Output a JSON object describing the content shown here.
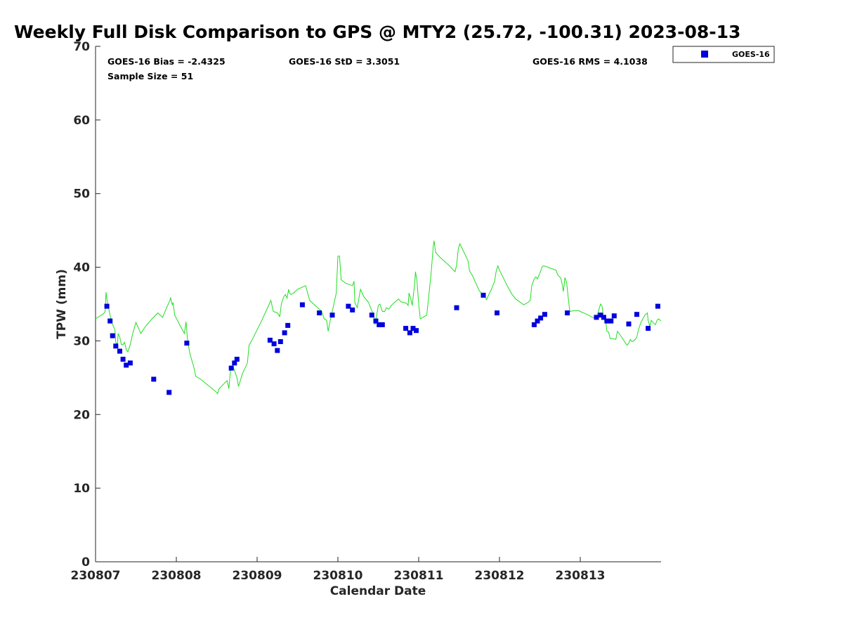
{
  "chart_data": {
    "type": "line+scatter",
    "title": "Weekly Full Disk Comparison to GPS @ MTY2 (25.72, -100.31) 2023-08-13",
    "xlabel": "Calendar Date",
    "ylabel": "TPW (mm)",
    "xlim": [
      0,
      7
    ],
    "ylim": [
      0,
      70
    ],
    "x_ticks": [
      {
        "x": 0,
        "label": "230807"
      },
      {
        "x": 1,
        "label": "230808"
      },
      {
        "x": 2,
        "label": "230809"
      },
      {
        "x": 3,
        "label": "230810"
      },
      {
        "x": 4,
        "label": "230811"
      },
      {
        "x": 5,
        "label": "230812"
      },
      {
        "x": 6,
        "label": "230813"
      }
    ],
    "y_ticks": [
      {
        "y": 0,
        "label": "0"
      },
      {
        "y": 10,
        "label": "10"
      },
      {
        "y": 20,
        "label": "20"
      },
      {
        "y": 30,
        "label": "30"
      },
      {
        "y": 40,
        "label": "40"
      },
      {
        "y": 50,
        "label": "50"
      },
      {
        "y": 60,
        "label": "60"
      },
      {
        "y": 70,
        "label": "70"
      }
    ],
    "stats": {
      "bias": "GOES-16 Bias = -2.4325",
      "std": "GOES-16 StD = 3.3051",
      "rms": "GOES-16 RMS = 4.1038",
      "sample": "Sample Size = 51"
    },
    "legend": {
      "position": "top-right",
      "entries": [
        "GOES-16"
      ]
    },
    "series": [
      {
        "name": "GPS",
        "style": "line",
        "color": "#22dd22",
        "points": [
          [
            0.0,
            33.0
          ],
          [
            0.1,
            33.7
          ],
          [
            0.12,
            34.0
          ],
          [
            0.13,
            36.6
          ],
          [
            0.15,
            35.0
          ],
          [
            0.18,
            33.5
          ],
          [
            0.2,
            32.5
          ],
          [
            0.24,
            31.5
          ],
          [
            0.25,
            29.8
          ],
          [
            0.27,
            29.5
          ],
          [
            0.28,
            31.0
          ],
          [
            0.3,
            30.5
          ],
          [
            0.32,
            29.5
          ],
          [
            0.34,
            29.5
          ],
          [
            0.36,
            29.8
          ],
          [
            0.38,
            28.8
          ],
          [
            0.4,
            28.5
          ],
          [
            0.43,
            29.5
          ],
          [
            0.46,
            31.0
          ],
          [
            0.5,
            32.5
          ],
          [
            0.53,
            31.8
          ],
          [
            0.56,
            31.0
          ],
          [
            0.62,
            32.0
          ],
          [
            0.7,
            33.0
          ],
          [
            0.77,
            33.8
          ],
          [
            0.83,
            33.2
          ],
          [
            0.88,
            34.5
          ],
          [
            0.92,
            35.5
          ],
          [
            0.93,
            35.9
          ],
          [
            0.94,
            35.3
          ],
          [
            0.95,
            34.9
          ],
          [
            0.96,
            35.2
          ],
          [
            0.98,
            33.5
          ],
          [
            1.05,
            32.0
          ],
          [
            1.1,
            31.0
          ],
          [
            1.12,
            32.6
          ],
          [
            1.14,
            30.0
          ],
          [
            1.17,
            28.2
          ],
          [
            1.22,
            26.3
          ],
          [
            1.24,
            25.2
          ],
          [
            1.3,
            24.8
          ],
          [
            1.4,
            23.9
          ],
          [
            1.5,
            23.0
          ],
          [
            1.51,
            22.8
          ],
          [
            1.53,
            23.5
          ],
          [
            1.6,
            24.3
          ],
          [
            1.63,
            24.6
          ],
          [
            1.65,
            23.5
          ],
          [
            1.67,
            26.0
          ],
          [
            1.7,
            26.6
          ],
          [
            1.75,
            25.0
          ],
          [
            1.77,
            23.8
          ],
          [
            1.82,
            25.6
          ],
          [
            1.88,
            27.0
          ],
          [
            1.9,
            29.4
          ],
          [
            1.95,
            30.4
          ],
          [
            2.0,
            31.5
          ],
          [
            2.05,
            32.6
          ],
          [
            2.1,
            33.8
          ],
          [
            2.15,
            35.0
          ],
          [
            2.17,
            35.5
          ],
          [
            2.2,
            34.0
          ],
          [
            2.25,
            33.8
          ],
          [
            2.28,
            33.3
          ],
          [
            2.3,
            35.0
          ],
          [
            2.33,
            36.0
          ],
          [
            2.35,
            36.3
          ],
          [
            2.37,
            35.8
          ],
          [
            2.39,
            37.0
          ],
          [
            2.4,
            36.5
          ],
          [
            2.42,
            36.3
          ],
          [
            2.45,
            36.5
          ],
          [
            2.5,
            37.0
          ],
          [
            2.6,
            37.5
          ],
          [
            2.65,
            35.5
          ],
          [
            2.8,
            34.0
          ],
          [
            2.83,
            33.0
          ],
          [
            2.86,
            32.8
          ],
          [
            2.88,
            31.3
          ],
          [
            2.9,
            32.5
          ],
          [
            2.98,
            36.5
          ],
          [
            3.0,
            41.5
          ],
          [
            3.02,
            41.5
          ],
          [
            3.04,
            38.3
          ],
          [
            3.1,
            37.8
          ],
          [
            3.18,
            37.5
          ],
          [
            3.2,
            38.1
          ],
          [
            3.21,
            35.2
          ],
          [
            3.24,
            34.5
          ],
          [
            3.25,
            35.2
          ],
          [
            3.28,
            37.0
          ],
          [
            3.32,
            36.0
          ],
          [
            3.38,
            35.2
          ],
          [
            3.44,
            33.5
          ],
          [
            3.46,
            32.2
          ],
          [
            3.5,
            34.8
          ],
          [
            3.52,
            35.0
          ],
          [
            3.55,
            34.0
          ],
          [
            3.58,
            34.0
          ],
          [
            3.6,
            34.5
          ],
          [
            3.63,
            34.3
          ],
          [
            3.66,
            34.8
          ],
          [
            3.72,
            35.4
          ],
          [
            3.75,
            35.7
          ],
          [
            3.78,
            35.3
          ],
          [
            3.82,
            35.2
          ],
          [
            3.85,
            35.1
          ],
          [
            3.87,
            34.8
          ],
          [
            3.88,
            36.5
          ],
          [
            3.9,
            35.8
          ],
          [
            3.92,
            34.8
          ],
          [
            3.95,
            37.8
          ],
          [
            3.96,
            39.4
          ],
          [
            3.98,
            38.0
          ],
          [
            4.0,
            35.0
          ],
          [
            4.02,
            33.0
          ],
          [
            4.1,
            33.5
          ],
          [
            4.13,
            36.7
          ],
          [
            4.15,
            38.8
          ],
          [
            4.16,
            40.0
          ],
          [
            4.18,
            42.8
          ],
          [
            4.19,
            43.6
          ],
          [
            4.21,
            42.0
          ],
          [
            4.26,
            41.4
          ],
          [
            4.32,
            40.8
          ],
          [
            4.38,
            40.2
          ],
          [
            4.43,
            39.6
          ],
          [
            4.45,
            39.4
          ],
          [
            4.47,
            40.3
          ],
          [
            4.49,
            42.5
          ],
          [
            4.51,
            43.2
          ],
          [
            4.54,
            42.5
          ],
          [
            4.58,
            41.6
          ],
          [
            4.61,
            40.9
          ],
          [
            4.63,
            39.5
          ],
          [
            4.67,
            38.8
          ],
          [
            4.7,
            38.0
          ],
          [
            4.75,
            36.8
          ],
          [
            4.79,
            36.3
          ],
          [
            4.81,
            36.2
          ],
          [
            4.84,
            35.6
          ],
          [
            4.86,
            36.1
          ],
          [
            4.9,
            37.0
          ],
          [
            4.94,
            38.1
          ],
          [
            4.96,
            39.5
          ],
          [
            4.98,
            40.2
          ],
          [
            5.0,
            39.6
          ],
          [
            5.05,
            38.5
          ],
          [
            5.1,
            37.4
          ],
          [
            5.15,
            36.4
          ],
          [
            5.2,
            35.7
          ],
          [
            5.3,
            34.9
          ],
          [
            5.35,
            35.2
          ],
          [
            5.38,
            35.5
          ],
          [
            5.4,
            37.5
          ],
          [
            5.43,
            38.4
          ],
          [
            5.45,
            38.7
          ],
          [
            5.47,
            38.4
          ],
          [
            5.5,
            39.2
          ],
          [
            5.53,
            40.1
          ],
          [
            5.55,
            40.2
          ],
          [
            5.6,
            40.0
          ],
          [
            5.7,
            39.6
          ],
          [
            5.72,
            39.0
          ],
          [
            5.76,
            38.5
          ],
          [
            5.77,
            38.0
          ],
          [
            5.78,
            37.5
          ],
          [
            5.79,
            36.7
          ],
          [
            5.8,
            37.5
          ],
          [
            5.81,
            38.6
          ],
          [
            5.83,
            38.0
          ],
          [
            5.85,
            36.0
          ],
          [
            5.87,
            34.0
          ],
          [
            5.92,
            34.1
          ],
          [
            5.98,
            34.1
          ],
          [
            6.0,
            34.0
          ],
          [
            6.1,
            33.5
          ],
          [
            6.15,
            33.2
          ],
          [
            6.2,
            33.1
          ],
          [
            6.25,
            35.0
          ],
          [
            6.27,
            34.7
          ],
          [
            6.29,
            33.0
          ],
          [
            6.32,
            32.3
          ],
          [
            6.33,
            31.3
          ],
          [
            6.35,
            31.2
          ],
          [
            6.37,
            30.3
          ],
          [
            6.4,
            30.3
          ],
          [
            6.44,
            30.2
          ],
          [
            6.46,
            31.3
          ],
          [
            6.5,
            30.7
          ],
          [
            6.53,
            30.2
          ],
          [
            6.56,
            29.7
          ],
          [
            6.58,
            29.4
          ],
          [
            6.6,
            29.7
          ],
          [
            6.62,
            30.2
          ],
          [
            6.64,
            29.9
          ],
          [
            6.66,
            30.0
          ],
          [
            6.68,
            30.2
          ],
          [
            6.7,
            30.5
          ],
          [
            6.72,
            31.5
          ],
          [
            6.75,
            32.5
          ],
          [
            6.8,
            33.5
          ],
          [
            6.83,
            33.8
          ],
          [
            6.84,
            32.8
          ],
          [
            6.86,
            32.0
          ],
          [
            6.88,
            32.8
          ],
          [
            6.9,
            32.5
          ],
          [
            6.93,
            32.2
          ],
          [
            6.95,
            32.8
          ],
          [
            6.97,
            33.0
          ],
          [
            7.0,
            32.7
          ]
        ]
      },
      {
        "name": "GOES-16",
        "style": "square-markers",
        "color": "#0000dd",
        "points": [
          [
            0.14,
            34.7
          ],
          [
            0.18,
            32.7
          ],
          [
            0.21,
            30.7
          ],
          [
            0.25,
            29.3
          ],
          [
            0.3,
            28.6
          ],
          [
            0.34,
            27.5
          ],
          [
            0.38,
            26.7
          ],
          [
            0.43,
            27.0
          ],
          [
            0.72,
            24.8
          ],
          [
            0.91,
            23.0
          ],
          [
            1.13,
            29.7
          ],
          [
            1.68,
            26.3
          ],
          [
            1.72,
            27.0
          ],
          [
            1.75,
            27.5
          ],
          [
            2.16,
            30.1
          ],
          [
            2.21,
            29.6
          ],
          [
            2.25,
            28.7
          ],
          [
            2.29,
            29.9
          ],
          [
            2.34,
            31.1
          ],
          [
            2.38,
            32.1
          ],
          [
            2.56,
            34.9
          ],
          [
            2.77,
            33.8
          ],
          [
            2.93,
            33.5
          ],
          [
            3.13,
            34.7
          ],
          [
            3.18,
            34.2
          ],
          [
            3.42,
            33.5
          ],
          [
            3.47,
            32.7
          ],
          [
            3.51,
            32.2
          ],
          [
            3.55,
            32.2
          ],
          [
            3.84,
            31.7
          ],
          [
            3.89,
            31.1
          ],
          [
            3.93,
            31.7
          ],
          [
            3.97,
            31.4
          ],
          [
            4.47,
            34.5
          ],
          [
            4.8,
            36.2
          ],
          [
            4.97,
            33.8
          ],
          [
            5.43,
            32.2
          ],
          [
            5.47,
            32.7
          ],
          [
            5.51,
            33.1
          ],
          [
            5.56,
            33.6
          ],
          [
            5.84,
            33.8
          ],
          [
            6.2,
            33.2
          ],
          [
            6.25,
            33.5
          ],
          [
            6.29,
            33.2
          ],
          [
            6.33,
            32.7
          ],
          [
            6.38,
            32.7
          ],
          [
            6.42,
            33.4
          ],
          [
            6.6,
            32.3
          ],
          [
            6.7,
            33.6
          ],
          [
            6.84,
            31.7
          ],
          [
            6.96,
            34.7
          ]
        ]
      }
    ]
  }
}
